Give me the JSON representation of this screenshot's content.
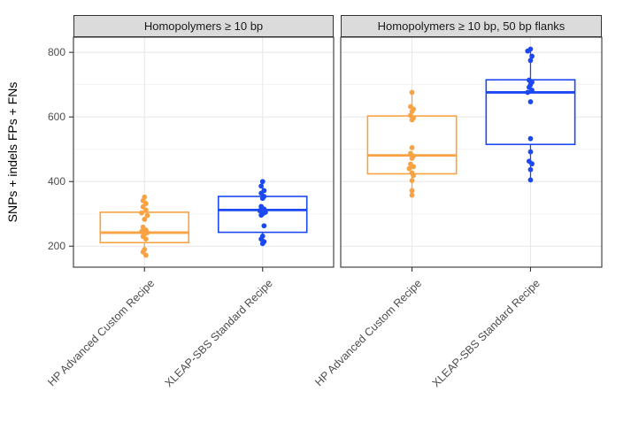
{
  "chart_data": {
    "type": "boxplot",
    "title": "",
    "ylabel": "SNPs + indels FPs + FNs",
    "xlabel": "",
    "ylim": [
      135,
      847
    ],
    "y_ticks": [
      200,
      400,
      600,
      800
    ],
    "y_minor_gridlines": [
      300,
      500,
      700
    ],
    "grid": "on",
    "legend_position": "none",
    "categories": [
      "HP Advanced Custom Recipe",
      "XLEAP-SBS Standard Recipe"
    ],
    "style": {
      "strip_background": "#DBDBDB",
      "panel_background": "#FFFFFF",
      "panel_border": "#333333",
      "grid_major": "#E9E9E9",
      "grid_minor": "#F3F3F3",
      "tick_color": "#333333",
      "axis_text_color": "#4D4D4D",
      "orange": "#F9A242",
      "blue": "#1C48F2"
    },
    "facets": [
      {
        "label": "Homopolymers ≥ 10 bp",
        "groups": [
          {
            "category": "HP Advanced Custom Recipe",
            "color": "#F9A242",
            "box": {
              "q1": 211,
              "median": 242,
              "q3": 305,
              "whisker_low": 170,
              "whisker_high": 352
            },
            "points": [
              [
                352,
                0
              ],
              [
                341,
                -1
              ],
              [
                332,
                1
              ],
              [
                322,
                -1
              ],
              [
                312,
                1
              ],
              [
                303,
                -2
              ],
              [
                295,
                2
              ],
              [
                283,
                0
              ],
              [
                259,
                -1
              ],
              [
                250,
                1
              ],
              [
                245,
                -2
              ],
              [
                242,
                2
              ],
              [
                238,
                0
              ],
              [
                230,
                -1
              ],
              [
                222,
                1
              ],
              [
                190,
                0
              ],
              [
                182,
                -1
              ],
              [
                172,
                1
              ]
            ]
          },
          {
            "category": "XLEAP-SBS Standard Recipe",
            "color": "#1C48F2",
            "box": {
              "q1": 243,
              "median": 312,
              "q3": 354,
              "whisker_low": 206,
              "whisker_high": 400
            },
            "points": [
              [
                400,
                0
              ],
              [
                386,
                -1
              ],
              [
                372,
                1
              ],
              [
                364,
                -1
              ],
              [
                354,
                1
              ],
              [
                348,
                0
              ],
              [
                323,
                -1
              ],
              [
                315,
                1
              ],
              [
                310,
                -2
              ],
              [
                305,
                2
              ],
              [
                300,
                0
              ],
              [
                296,
                -1
              ],
              [
                263,
                1
              ],
              [
                231,
                0
              ],
              [
                222,
                -1
              ],
              [
                214,
                1
              ],
              [
                208,
                0
              ]
            ]
          }
        ]
      },
      {
        "label": "Homopolymers ≥ 10 bp, 50 bp flanks",
        "groups": [
          {
            "category": "HP Advanced Custom Recipe",
            "color": "#F9A242",
            "box": {
              "q1": 424,
              "median": 481,
              "q3": 603,
              "whisker_low": 352,
              "whisker_high": 676
            },
            "points": [
              [
                676,
                0
              ],
              [
                632,
                -1
              ],
              [
                624,
                1
              ],
              [
                617,
                0
              ],
              [
                605,
                -1
              ],
              [
                597,
                1
              ],
              [
                591,
                0
              ],
              [
                505,
                0
              ],
              [
                487,
                -1
              ],
              [
                479,
                1
              ],
              [
                472,
                0
              ],
              [
                454,
                -1
              ],
              [
                446,
                1
              ],
              [
                440,
                -2
              ],
              [
                427,
                0
              ],
              [
                419,
                1
              ],
              [
                403,
                0
              ],
              [
                372,
                0
              ],
              [
                358,
                0
              ]
            ]
          },
          {
            "category": "XLEAP-SBS Standard Recipe",
            "color": "#1C48F2",
            "box": {
              "q1": 515,
              "median": 676,
              "q3": 715,
              "whisker_low": 405,
              "whisker_high": 810
            },
            "points": [
              [
                810,
                0
              ],
              [
                804,
                -2
              ],
              [
                788,
                1
              ],
              [
                775,
                0
              ],
              [
                714,
                -1
              ],
              [
                708,
                1
              ],
              [
                700,
                0
              ],
              [
                692,
                -1
              ],
              [
                683,
                1
              ],
              [
                676,
                -2
              ],
              [
                647,
                0
              ],
              [
                533,
                0
              ],
              [
                492,
                0
              ],
              [
                463,
                -1
              ],
              [
                455,
                1
              ],
              [
                437,
                0
              ],
              [
                405,
                0
              ]
            ]
          }
        ]
      }
    ]
  }
}
